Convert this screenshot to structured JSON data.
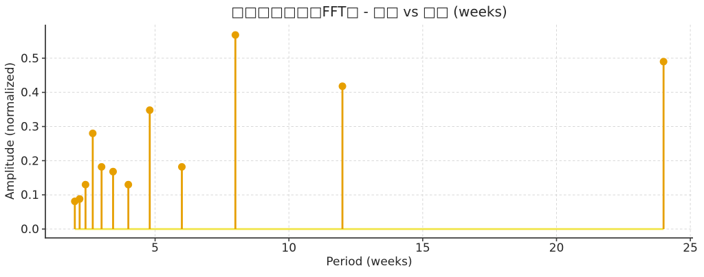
{
  "chart_data": {
    "type": "stem",
    "title": "□□□□□□□FFT□ - □□ vs □□ (weeks)",
    "xlabel": "Period (weeks)",
    "ylabel": "Amplitude (normalized)",
    "x": [
      2.0,
      2.18,
      2.4,
      2.67,
      3.0,
      3.43,
      4.0,
      4.8,
      6.0,
      8.0,
      12.0,
      24.0
    ],
    "values": [
      0.081,
      0.088,
      0.13,
      0.28,
      0.182,
      0.168,
      0.13,
      0.348,
      0.182,
      0.568,
      0.418,
      0.49
    ],
    "baseline_value": 0.0,
    "xlim": [
      0.9,
      25.1
    ],
    "ylim": [
      -0.026,
      0.598
    ],
    "xticks": [
      5,
      10,
      15,
      20,
      25
    ],
    "xtick_labels": [
      "5",
      "10",
      "15",
      "20",
      "25"
    ],
    "yticks": [
      0.0,
      0.1,
      0.2,
      0.3,
      0.4,
      0.5
    ],
    "ytick_labels": [
      "0.0",
      "0.1",
      "0.2",
      "0.3",
      "0.4",
      "0.5"
    ],
    "grid": true,
    "grid_style": "dashed",
    "legend": null,
    "colors": {
      "stem": "#E69F00",
      "marker": "#E69F00",
      "baseline": "#F0E442",
      "grid": "#D7D7D7",
      "spine": "#3B3B3B",
      "text": "#262626",
      "background": "#FFFFFF"
    }
  }
}
